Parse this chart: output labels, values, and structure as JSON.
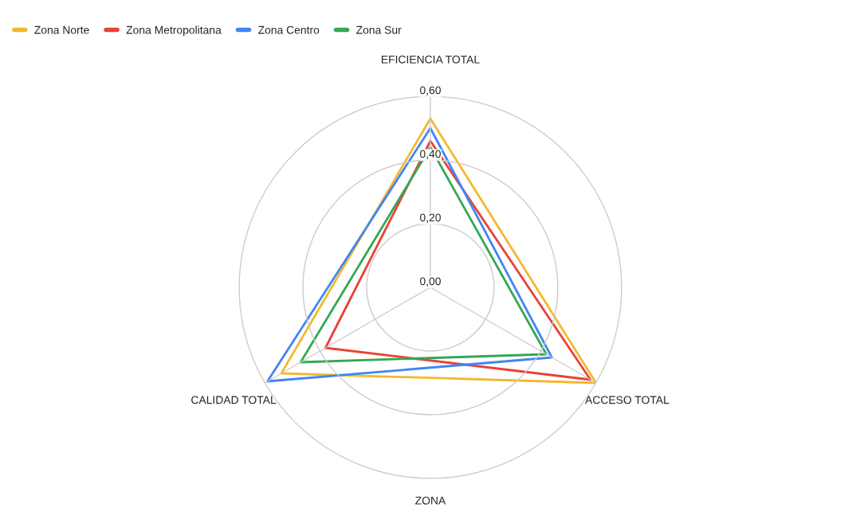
{
  "chart_data": {
    "type": "radar",
    "xlabel": "ZONA",
    "categories": [
      "EFICIENCIA TOTAL",
      "ACCESO TOTAL",
      "CALIDAD TOTAL"
    ],
    "series": [
      {
        "name": "Zona Norte",
        "color": "#f2b92f",
        "values": [
          0.53,
          0.6,
          0.54
        ]
      },
      {
        "name": "Zona Metropolitana",
        "color": "#e94235",
        "values": [
          0.46,
          0.58,
          0.38
        ]
      },
      {
        "name": "Zona Centro",
        "color": "#4285f4",
        "values": [
          0.5,
          0.44,
          0.59
        ]
      },
      {
        "name": "Zona Sur",
        "color": "#34a853",
        "values": [
          0.44,
          0.42,
          0.47
        ]
      }
    ],
    "ylim": [
      0,
      0.6
    ],
    "yticks": [
      {
        "value": 0,
        "label": "0,00"
      },
      {
        "value": 0.2,
        "label": "0,20"
      },
      {
        "value": 0.4,
        "label": "0,40"
      },
      {
        "value": 0.6,
        "label": "0,60"
      }
    ],
    "grid": true,
    "legend": "top left"
  }
}
